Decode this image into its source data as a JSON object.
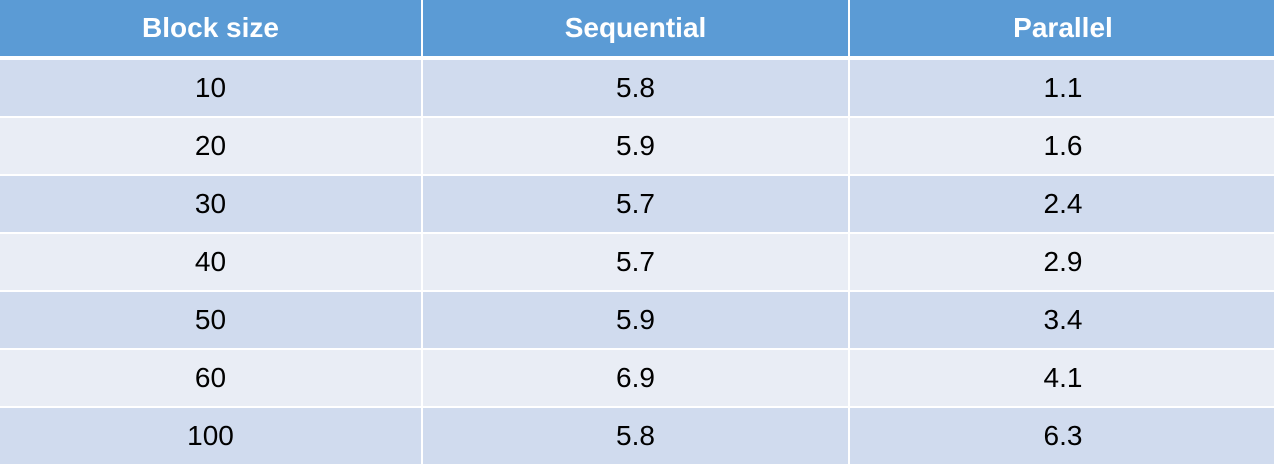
{
  "table": {
    "header": [
      "Block size",
      "Sequential",
      "Parallel"
    ],
    "rows": [
      [
        "10",
        "5.8",
        "1.1"
      ],
      [
        "20",
        "5.9",
        "1.6"
      ],
      [
        "30",
        "5.7",
        "2.4"
      ],
      [
        "40",
        "5.7",
        "2.9"
      ],
      [
        "50",
        "5.9",
        "3.4"
      ],
      [
        "60",
        "6.9",
        "4.1"
      ],
      [
        "100",
        "5.8",
        "6.3"
      ]
    ]
  }
}
